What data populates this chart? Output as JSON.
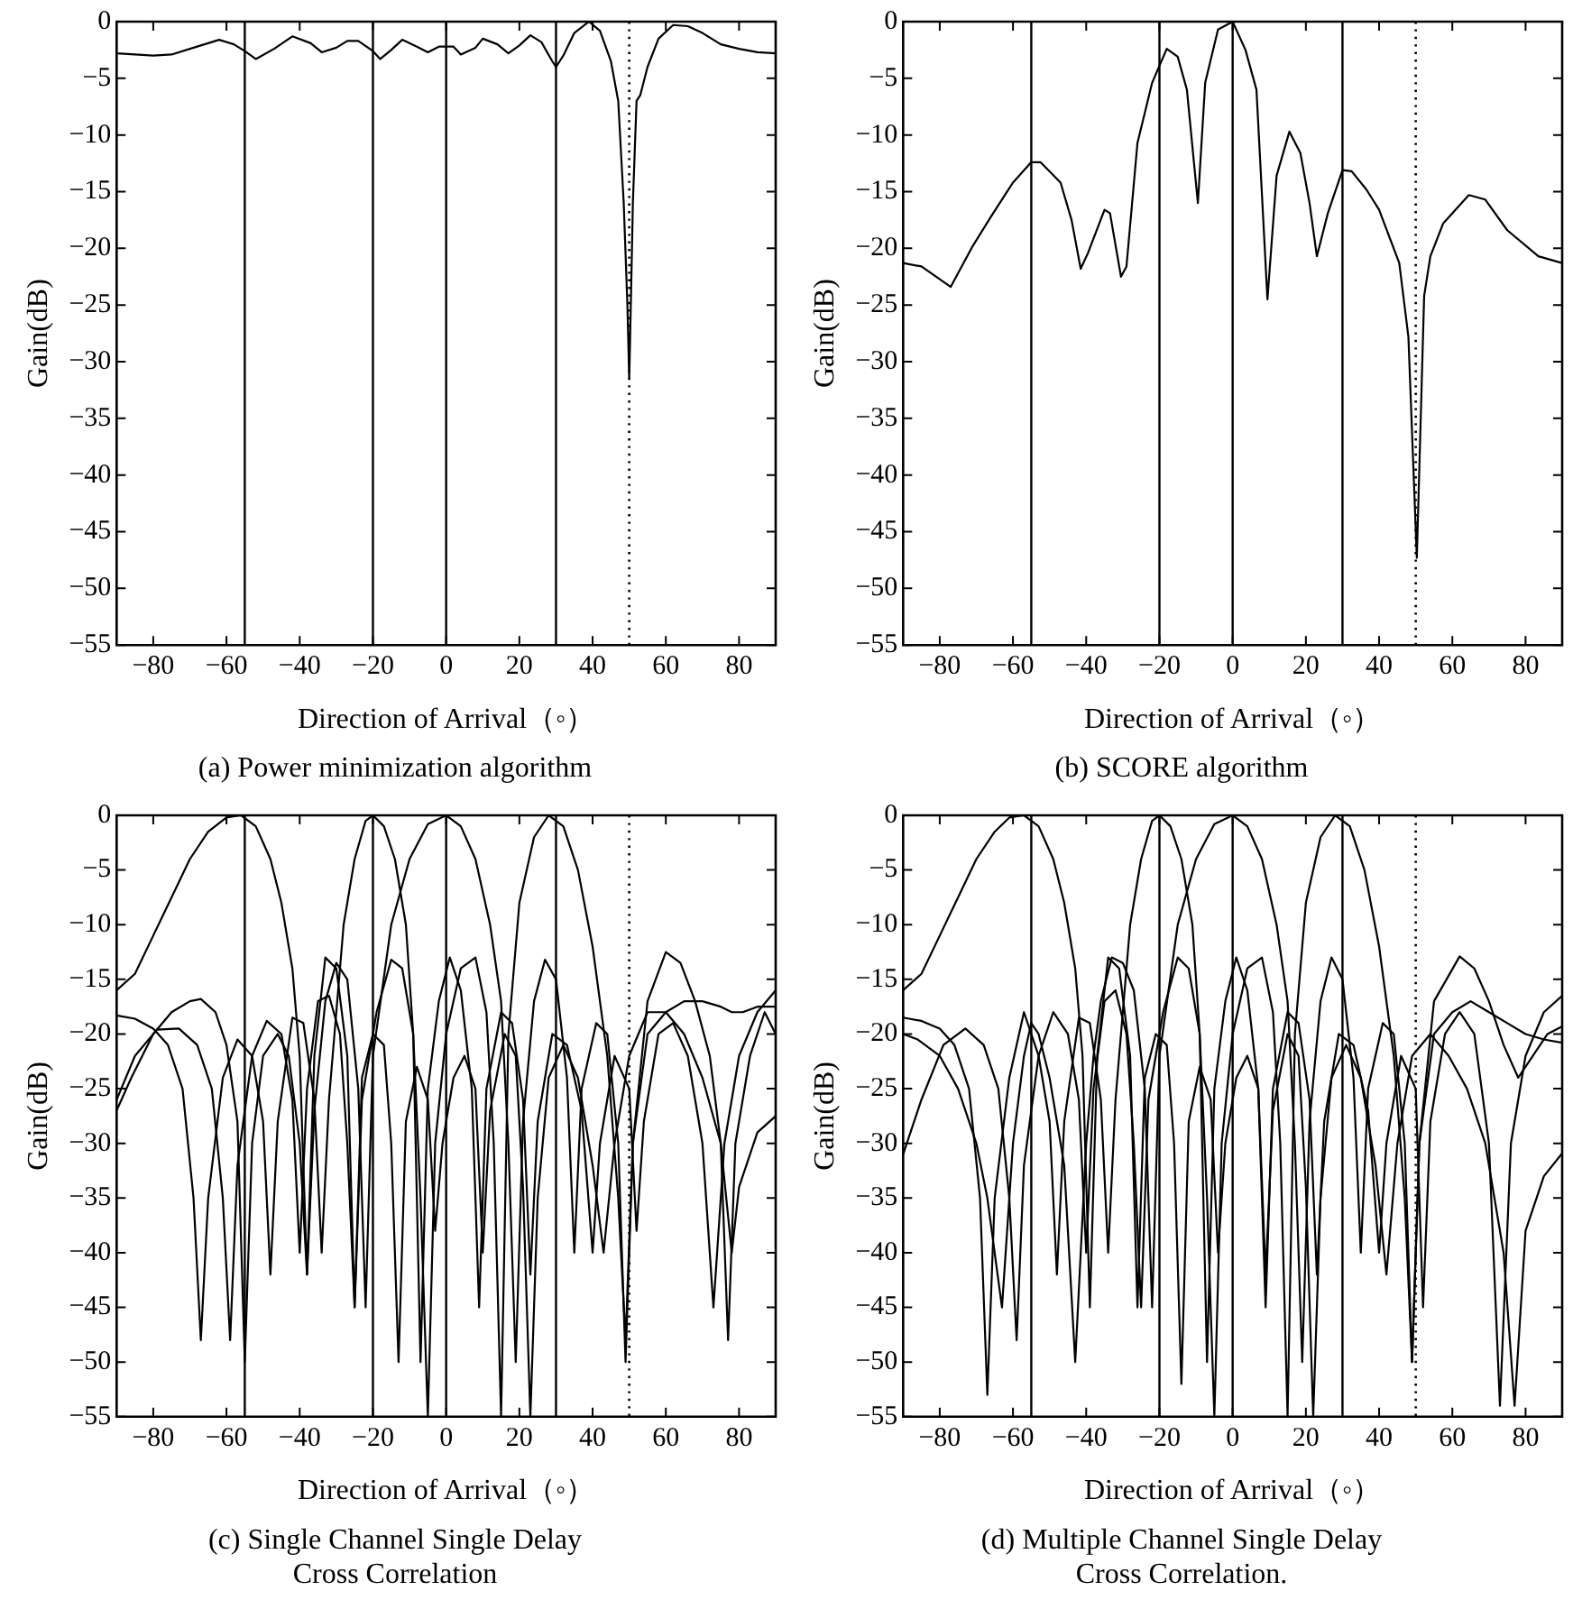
{
  "chart_data": [
    {
      "type": "line",
      "title": "(a) Power minimization algorithm",
      "xlabel": "Direction of Arrival（◦）",
      "ylabel": "Gain(dB)",
      "xlim": [
        -90,
        90
      ],
      "ylim": [
        -55,
        0
      ],
      "xticks": [
        -80,
        -60,
        -40,
        -20,
        0,
        20,
        40,
        60,
        80
      ],
      "yticks": [
        0,
        -5,
        -10,
        -15,
        -20,
        -25,
        -30,
        -35,
        -40,
        -45,
        -50,
        -55
      ],
      "grid": false,
      "legend": false,
      "ref_lines": [
        {
          "axis": "x",
          "value": -55,
          "color": "#000000",
          "line_style": "solid"
        },
        {
          "axis": "x",
          "value": -20,
          "color": "#000000",
          "line_style": "solid"
        },
        {
          "axis": "x",
          "value": 0,
          "color": "#000000",
          "line_style": "solid"
        },
        {
          "axis": "x",
          "value": 30,
          "color": "#000000",
          "line_style": "solid"
        },
        {
          "axis": "x",
          "value": 50,
          "color": "#000000",
          "line_style": "dotted"
        }
      ],
      "series": [
        {
          "color": "#000000",
          "x": [
            -90,
            -80,
            -75,
            -68,
            -62,
            -58,
            -55,
            -52,
            -47,
            -42,
            -37,
            -34,
            -30,
            -27,
            -24,
            -20,
            -18,
            -15,
            -12,
            -8,
            -5,
            -2,
            2,
            4,
            8,
            10,
            14,
            17,
            20,
            23,
            26,
            29,
            30,
            32,
            35,
            39,
            42,
            45,
            47,
            48.5,
            49.5,
            50,
            50.5,
            51,
            52,
            53,
            55,
            58,
            62,
            66,
            70,
            75,
            80,
            85,
            90
          ],
          "values": [
            -2.8,
            -3,
            -2.9,
            -2.2,
            -1.6,
            -2,
            -2.6,
            -3.3,
            -2.4,
            -1.3,
            -1.9,
            -2.7,
            -2.3,
            -1.7,
            -1.7,
            -2.6,
            -3.3,
            -2.5,
            -1.6,
            -2.2,
            -2.7,
            -2.2,
            -2.2,
            -2.9,
            -2.3,
            -1.5,
            -2,
            -2.8,
            -2.1,
            -1.2,
            -1.8,
            -3.5,
            -4,
            -3,
            -1,
            0,
            -0.8,
            -3.5,
            -7,
            -16,
            -25,
            -31.5,
            -24,
            -16,
            -7,
            -6.5,
            -4,
            -1.5,
            -0.3,
            -0.4,
            -1,
            -2,
            -2.4,
            -2.7,
            -2.8
          ]
        }
      ]
    },
    {
      "type": "line",
      "title": "(b) SCORE algorithm",
      "xlabel": "Direction of Arrival（◦）",
      "ylabel": "Gain(dB)",
      "xlim": [
        -90,
        90
      ],
      "ylim": [
        -55,
        0
      ],
      "xticks": [
        -80,
        -60,
        -40,
        -20,
        0,
        20,
        40,
        60,
        80
      ],
      "yticks": [
        0,
        -5,
        -10,
        -15,
        -20,
        -25,
        -30,
        -35,
        -40,
        -45,
        -50,
        -55
      ],
      "grid": false,
      "legend": false,
      "ref_lines": [
        {
          "axis": "x",
          "value": -55,
          "color": "#000000",
          "line_style": "solid"
        },
        {
          "axis": "x",
          "value": -20,
          "color": "#000000",
          "line_style": "solid"
        },
        {
          "axis": "x",
          "value": 0,
          "color": "#000000",
          "line_style": "solid"
        },
        {
          "axis": "x",
          "value": 30,
          "color": "#000000",
          "line_style": "solid"
        },
        {
          "axis": "x",
          "value": 50,
          "color": "#000000",
          "line_style": "dotted"
        }
      ],
      "series": [
        {
          "color": "#000000",
          "x": [
            -90,
            -85,
            -77,
            -71,
            -66,
            -60,
            -55,
            -52.5,
            -47,
            -44,
            -41.5,
            -39.5,
            -35,
            -33.5,
            -30.5,
            -29,
            -26,
            -22,
            -18,
            -15,
            -12.5,
            -9.5,
            -7.5,
            -4,
            0,
            3.5,
            6.5,
            9.5,
            12,
            15.5,
            18.5,
            21,
            23,
            26,
            30,
            32.5,
            36.5,
            40,
            45.5,
            48,
            50.3,
            52.3,
            54,
            57.5,
            64.5,
            69,
            75,
            83.5,
            90
          ],
          "values": [
            -21.3,
            -21.6,
            -23.4,
            -19.8,
            -17.2,
            -14.2,
            -12.4,
            -12.4,
            -14.2,
            -17.5,
            -21.8,
            -20.4,
            -16.6,
            -16.9,
            -22.5,
            -21.6,
            -10.7,
            -5.4,
            -2.4,
            -3.1,
            -6,
            -16,
            -5.4,
            -0.7,
            0,
            -2.5,
            -6,
            -24.5,
            -13.6,
            -9.7,
            -11.6,
            -16,
            -20.7,
            -16.9,
            -13.1,
            -13.2,
            -14.8,
            -16.6,
            -21.3,
            -27.8,
            -47.3,
            -24.2,
            -20.7,
            -17.8,
            -15.3,
            -15.7,
            -18.4,
            -20.7,
            -21.3
          ]
        }
      ]
    },
    {
      "type": "line",
      "title": "(c) Single Channel Single Delay\nCross Correlation",
      "xlabel": "Direction of Arrival（◦）",
      "ylabel": "Gain(dB)",
      "xlim": [
        -90,
        90
      ],
      "ylim": [
        -55,
        0
      ],
      "xticks": [
        -80,
        -60,
        -40,
        -20,
        0,
        20,
        40,
        60,
        80
      ],
      "yticks": [
        0,
        -5,
        -10,
        -15,
        -20,
        -25,
        -30,
        -35,
        -40,
        -45,
        -50,
        -55
      ],
      "grid": false,
      "legend": false,
      "ref_lines": [
        {
          "axis": "x",
          "value": -55,
          "color": "#000000",
          "line_style": "solid"
        },
        {
          "axis": "x",
          "value": -20,
          "color": "#000000",
          "line_style": "solid"
        },
        {
          "axis": "x",
          "value": 0,
          "color": "#000000",
          "line_style": "solid"
        },
        {
          "axis": "x",
          "value": 30,
          "color": "#000000",
          "line_style": "solid"
        },
        {
          "axis": "x",
          "value": 50,
          "color": "#000000",
          "line_style": "dotted"
        }
      ],
      "series": [
        {
          "color": "#000000",
          "x": [
            -90,
            -85,
            -80,
            -75,
            -70,
            -65,
            -60,
            -56,
            -52,
            -48,
            -45,
            -42,
            -40,
            -38,
            -36,
            -33,
            -30,
            -27,
            -25,
            -23,
            -20,
            -17,
            -15,
            -13,
            -11,
            -8,
            -5,
            -3,
            -1,
            2,
            5,
            8,
            10,
            12,
            16,
            19,
            21,
            23,
            25,
            28,
            32,
            36,
            40,
            43,
            46,
            50,
            55,
            60,
            65,
            70,
            75,
            78,
            80,
            85,
            90
          ],
          "values": [
            -16,
            -14.5,
            -11,
            -7.5,
            -4,
            -1.5,
            -0.2,
            0,
            -1,
            -4,
            -8,
            -14,
            -22,
            -42,
            -22,
            -13,
            -14,
            -22,
            -45,
            -24,
            -20,
            -21,
            -30,
            -50,
            -28,
            -23,
            -26,
            -38,
            -30,
            -24,
            -22,
            -25,
            -40,
            -27,
            -20,
            -22,
            -34,
            -55,
            -35,
            -24,
            -21,
            -24,
            -32,
            -40,
            -30,
            -22,
            -18,
            -18,
            -20,
            -24,
            -30,
            -40,
            -34,
            -29,
            -27.5
          ]
        },
        {
          "color": "#000000",
          "x": [
            -90,
            -85,
            -80,
            -76,
            -72,
            -69,
            -67,
            -65,
            -61,
            -57,
            -53,
            -50,
            -48,
            -46,
            -42,
            -39,
            -36,
            -34,
            -32,
            -28,
            -25,
            -22,
            -20,
            -17,
            -14,
            -11,
            -9,
            -7,
            -5,
            -2,
            1,
            4,
            7,
            9,
            11,
            15,
            18,
            21,
            23,
            25,
            29,
            33,
            37,
            40,
            42,
            46,
            50,
            52,
            54,
            58,
            62,
            66,
            70,
            73,
            76,
            80,
            85,
            90
          ],
          "values": [
            -18.3,
            -18.6,
            -19.5,
            -21,
            -25,
            -35,
            -48,
            -35,
            -24,
            -20.5,
            -22,
            -28,
            -42,
            -28,
            -18.5,
            -19,
            -26,
            -40,
            -26,
            -10,
            -4,
            -0.5,
            0,
            -1,
            -4,
            -10,
            -20,
            -50,
            -25,
            -17,
            -13,
            -16,
            -25,
            -45,
            -25,
            -18,
            -19,
            -26,
            -42,
            -28,
            -20,
            -21,
            -27,
            -40,
            -30,
            -22,
            -25,
            -38,
            -28,
            -20,
            -19,
            -22,
            -30,
            -45,
            -30,
            -22,
            -18,
            -16
          ]
        },
        {
          "color": "#000000",
          "x": [
            -90,
            -86,
            -80,
            -75,
            -70,
            -67,
            -63,
            -60,
            -57,
            -55,
            -53,
            -50,
            -46,
            -43,
            -40,
            -38,
            -36,
            -33,
            -30,
            -27,
            -24,
            -22,
            -20,
            -15,
            -10,
            -5,
            0,
            4,
            8,
            12,
            15,
            17,
            19,
            21,
            24,
            27,
            30,
            33,
            35,
            37,
            41,
            44,
            47,
            49,
            51,
            55,
            60,
            65,
            70,
            75,
            78,
            81,
            85,
            90
          ],
          "values": [
            -27,
            -24,
            -20,
            -18,
            -17,
            -16.8,
            -18,
            -21,
            -28,
            -50,
            -30,
            -22,
            -20,
            -22,
            -30,
            -42,
            -27,
            -17,
            -13.5,
            -15,
            -25,
            -45,
            -22,
            -10,
            -4,
            -0.8,
            0,
            -1,
            -4,
            -10,
            -17,
            -30,
            -50,
            -28,
            -17,
            -13.2,
            -15,
            -24,
            -40,
            -25,
            -19,
            -20,
            -30,
            -50,
            -30,
            -20,
            -18,
            -17,
            -17,
            -17.5,
            -18,
            -18,
            -17.5,
            -17.5
          ]
        },
        {
          "color": "#000000",
          "x": [
            -90,
            -85,
            -79,
            -73,
            -68,
            -64,
            -61,
            -59,
            -57,
            -53,
            -49,
            -45,
            -42,
            -40,
            -38,
            -35,
            -32,
            -29,
            -27,
            -25,
            -23,
            -19,
            -15,
            -12,
            -9,
            -7,
            -5,
            -3,
            0,
            4,
            8,
            11,
            13,
            15,
            17,
            20,
            24,
            28,
            32,
            36,
            40,
            44,
            47,
            49,
            51,
            55,
            60,
            64,
            68,
            72,
            75,
            77,
            79,
            83,
            87,
            90
          ],
          "values": [
            -26,
            -22,
            -19.6,
            -19.5,
            -21,
            -25,
            -35,
            -48,
            -32,
            -22,
            -18.8,
            -20,
            -26,
            -40,
            -25,
            -17,
            -16.5,
            -20,
            -30,
            -45,
            -26,
            -18,
            -13.2,
            -14,
            -20,
            -35,
            -55,
            -30,
            -20,
            -14,
            -13,
            -18,
            -30,
            -55,
            -20,
            -8,
            -2,
            0,
            -1,
            -5,
            -12,
            -22,
            -35,
            -48,
            -30,
            -17,
            -12.5,
            -13.5,
            -17,
            -22,
            -30,
            -48,
            -30,
            -22,
            -18,
            -20
          ]
        }
      ]
    },
    {
      "type": "line",
      "title": "(d) Multiple Channel Single Delay\nCross Correlation.",
      "xlabel": "Direction of Arrival（◦）",
      "ylabel": "Gain(dB)",
      "xlim": [
        -90,
        90
      ],
      "ylim": [
        -55,
        0
      ],
      "xticks": [
        -80,
        -60,
        -40,
        -20,
        0,
        20,
        40,
        60,
        80
      ],
      "yticks": [
        0,
        -5,
        -10,
        -15,
        -20,
        -25,
        -30,
        -35,
        -40,
        -45,
        -50,
        -55
      ],
      "grid": false,
      "legend": false,
      "ref_lines": [
        {
          "axis": "x",
          "value": -55,
          "color": "#000000",
          "line_style": "solid"
        },
        {
          "axis": "x",
          "value": -20,
          "color": "#000000",
          "line_style": "solid"
        },
        {
          "axis": "x",
          "value": 0,
          "color": "#000000",
          "line_style": "solid"
        },
        {
          "axis": "x",
          "value": 30,
          "color": "#000000",
          "line_style": "solid"
        },
        {
          "axis": "x",
          "value": 50,
          "color": "#000000",
          "line_style": "dotted"
        }
      ],
      "series": [
        {
          "color": "#000000",
          "x": [
            -90,
            -85,
            -80,
            -75,
            -70,
            -65,
            -61,
            -57,
            -53,
            -49,
            -46,
            -43,
            -41,
            -39,
            -37,
            -34,
            -31,
            -28,
            -26,
            -24,
            -21,
            -18,
            -16,
            -14,
            -12,
            -9,
            -6,
            -4,
            -2,
            1,
            4,
            7,
            9,
            11,
            15,
            18,
            20,
            22,
            24,
            27,
            31,
            35,
            39,
            42,
            45,
            49,
            54,
            59,
            64,
            69,
            74,
            77,
            80,
            85,
            90
          ],
          "values": [
            -16,
            -14.5,
            -11,
            -7.5,
            -4,
            -1.5,
            -0.2,
            0,
            -1,
            -4,
            -8,
            -14,
            -22,
            -45,
            -22,
            -13,
            -14,
            -22,
            -45,
            -24,
            -20,
            -21,
            -30,
            -52,
            -28,
            -23,
            -26,
            -40,
            -30,
            -24,
            -22,
            -25,
            -42,
            -27,
            -20,
            -22,
            -34,
            -55,
            -35,
            -24,
            -21,
            -24,
            -32,
            -42,
            -30,
            -22,
            -20,
            -22,
            -25,
            -30,
            -40,
            -54,
            -38,
            -33,
            -30.9
          ]
        },
        {
          "color": "#000000",
          "x": [
            -90,
            -85,
            -80,
            -76,
            -72,
            -69,
            -67,
            -65,
            -61,
            -57,
            -53,
            -50,
            -48,
            -46,
            -42,
            -39,
            -36,
            -34,
            -32,
            -28,
            -25,
            -22,
            -20,
            -17,
            -14,
            -11,
            -9,
            -7,
            -5,
            -2,
            1,
            4,
            7,
            9,
            11,
            15,
            18,
            21,
            23,
            25,
            29,
            33,
            37,
            40,
            42,
            46,
            50,
            52,
            54,
            58,
            62,
            66,
            70,
            73,
            76,
            80,
            85,
            90
          ],
          "values": [
            -18.5,
            -18.8,
            -19.5,
            -21,
            -25,
            -35,
            -53,
            -35,
            -24,
            -18,
            -22,
            -28,
            -42,
            -28,
            -18.5,
            -19,
            -26,
            -40,
            -26,
            -10,
            -4,
            -0.5,
            0,
            -1,
            -4,
            -10,
            -20,
            -50,
            -25,
            -17,
            -13,
            -16,
            -25,
            -45,
            -25,
            -18,
            -19,
            -26,
            -42,
            -28,
            -20,
            -21,
            -27,
            -40,
            -30,
            -22,
            -25,
            -45,
            -28,
            -20,
            -18,
            -20,
            -30,
            -54,
            -30,
            -22,
            -18,
            -16.5
          ]
        },
        {
          "color": "#000000",
          "x": [
            -90,
            -86,
            -80,
            -75,
            -70,
            -67,
            -63,
            -60,
            -57,
            -55,
            -53,
            -50,
            -46,
            -43,
            -40,
            -38,
            -36,
            -33,
            -30,
            -27,
            -24,
            -22,
            -20,
            -15,
            -10,
            -5,
            0,
            4,
            8,
            12,
            15,
            17,
            19,
            21,
            24,
            27,
            30,
            33,
            35,
            37,
            41,
            44,
            47,
            49,
            51,
            55,
            60,
            65,
            70,
            75,
            80,
            85,
            90
          ],
          "values": [
            -20,
            -20.5,
            -22,
            -25,
            -30,
            -35,
            -45,
            -30,
            -22,
            -19,
            -20,
            -24,
            -32,
            -50,
            -30,
            -22,
            -17,
            -13,
            -13.5,
            -16,
            -25,
            -45,
            -22,
            -10,
            -4,
            -0.8,
            0,
            -1,
            -4,
            -10,
            -17,
            -30,
            -50,
            -28,
            -17,
            -13,
            -15,
            -24,
            -40,
            -25,
            -19,
            -20,
            -30,
            -50,
            -30,
            -20,
            -18,
            -17,
            -18,
            -19,
            -20,
            -20.5,
            -20.8
          ]
        },
        {
          "color": "#000000",
          "x": [
            -90,
            -85,
            -79,
            -73,
            -68,
            -64,
            -61,
            -59,
            -57,
            -53,
            -49,
            -45,
            -42,
            -40,
            -38,
            -35,
            -32,
            -29,
            -27,
            -25,
            -23,
            -19,
            -15,
            -12,
            -9,
            -7,
            -5,
            -3,
            0,
            4,
            8,
            11,
            13,
            15,
            17,
            20,
            24,
            28,
            32,
            36,
            40,
            44,
            47,
            49,
            51,
            55,
            62,
            66,
            70,
            74,
            78,
            82,
            86,
            90
          ],
          "values": [
            -31,
            -26,
            -21,
            -19.5,
            -21,
            -25,
            -35,
            -48,
            -32,
            -22,
            -18,
            -20,
            -26,
            -40,
            -25,
            -17,
            -16,
            -20,
            -30,
            -45,
            -26,
            -18,
            -13,
            -14,
            -20,
            -35,
            -55,
            -30,
            -20,
            -14,
            -13,
            -18,
            -30,
            -55,
            -20,
            -8,
            -2,
            0,
            -1,
            -5,
            -12,
            -22,
            -35,
            -50,
            -30,
            -17,
            -12.9,
            -14,
            -17,
            -21,
            -24,
            -22,
            -20,
            -19.3
          ]
        }
      ]
    }
  ]
}
